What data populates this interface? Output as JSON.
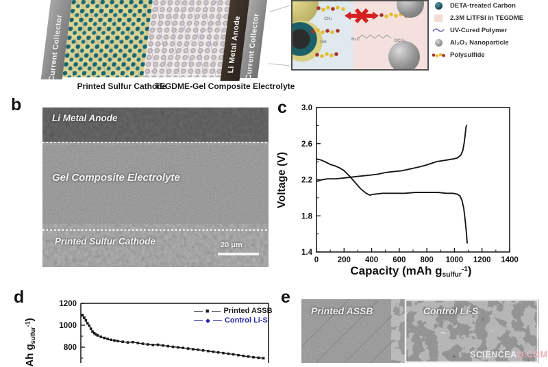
{
  "panel_a": {
    "schematic": {
      "current_collector_left": "Current Collector",
      "current_collector_right": "Current Collector",
      "li_metal_anode": "Li Metal Anode",
      "cathode_caption": "Printed Sulfur Cathode",
      "electrolyte_caption": "TEGDME-Gel Composite Electrolyte"
    },
    "inset": {
      "formula_left_top": "CH₃",
      "formula_left_bottom": "OH",
      "formula_right_left": "H₃C",
      "formula_right_right": "OCH₃"
    },
    "legend": [
      {
        "icon": "carbon-sphere-icon",
        "label": "DETA-treated Carbon"
      },
      {
        "icon": "tegdme-square-icon",
        "label": "2.3M LiTFSI in TEGDME"
      },
      {
        "icon": "polymer-curve-icon",
        "label": "UV-Cured Polymer"
      },
      {
        "icon": "alumina-sphere-icon",
        "label": "Al₂O₃ Nanoparticle"
      },
      {
        "icon": "polysulfide-chain-icon",
        "label": "Polysulfide"
      }
    ]
  },
  "panel_b": {
    "letter": "b",
    "layers": {
      "top": "Li Metal Anode",
      "middle": "Gel Composite Electrolyte",
      "bottom": "Printed Sulfur Cathode"
    },
    "scale_bar": "20 μm"
  },
  "panel_c": {
    "letter": "c",
    "ylabel": "Voltage (V)",
    "xlabel_pre": "Capacity (mAh g",
    "xlabel_sub": "sulfur",
    "xlabel_sup": "-1",
    "xlabel_post": ")"
  },
  "panel_d": {
    "letter": "d",
    "ylabel_pre": "Ah g",
    "ylabel_sub": "sulfur",
    "ylabel_sup": "-1",
    "ylabel_post": ")",
    "legend": [
      {
        "label": "Printed ASSB",
        "color": "#1a1a1a",
        "marker": "square"
      },
      {
        "label": "Control Li-S",
        "color": "#2525a8",
        "marker": "diamond"
      }
    ]
  },
  "panel_e": {
    "letter": "e",
    "label_left": "Printed ASSB",
    "label_right": "Control Li-S"
  },
  "watermark": {
    "part1": "SCIENCEA",
    "part2": "Q.COM"
  },
  "colors": {
    "carbon_teal": "#1b5e66",
    "sulfur_yellow": "#d6cf92",
    "polymer_purple": "#7b6fae",
    "alumina_gray": "#9a9a9a",
    "polysulfide_yellow": "#e3bd30",
    "polysulfide_red": "#a93226",
    "blocked_arrow_red": "#d42020",
    "control_blue": "#2525a8",
    "inset_left_bg": "#dfe9ee",
    "inset_right_bg": "#f4e1dd"
  },
  "chart_data": [
    {
      "panel": "c",
      "type": "line",
      "title": "",
      "xlabel": "Capacity (mAh g_sulfur^-1)",
      "ylabel": "Voltage (V)",
      "xlim": [
        0,
        1400
      ],
      "ylim": [
        1.4,
        3.0
      ],
      "xticks": [
        0,
        200,
        400,
        600,
        800,
        1000,
        1200,
        1400
      ],
      "yticks": [
        1.4,
        1.8,
        2.2,
        2.6,
        3.0
      ],
      "grid": false,
      "legend_position": "none",
      "series": [
        {
          "name": "discharge",
          "color": "#161616",
          "points": [
            [
              0,
              2.43
            ],
            [
              30,
              2.42
            ],
            [
              60,
              2.4
            ],
            [
              100,
              2.37
            ],
            [
              140,
              2.35
            ],
            [
              170,
              2.33
            ],
            [
              200,
              2.3
            ],
            [
              240,
              2.24
            ],
            [
              280,
              2.17
            ],
            [
              320,
              2.1
            ],
            [
              360,
              2.05
            ],
            [
              385,
              2.03
            ],
            [
              420,
              2.04
            ],
            [
              480,
              2.05
            ],
            [
              560,
              2.05
            ],
            [
              640,
              2.05
            ],
            [
              720,
              2.06
            ],
            [
              800,
              2.06
            ],
            [
              880,
              2.06
            ],
            [
              940,
              2.05
            ],
            [
              990,
              2.05
            ],
            [
              1020,
              2.04
            ],
            [
              1040,
              2.02
            ],
            [
              1055,
              1.97
            ],
            [
              1068,
              1.88
            ],
            [
              1078,
              1.75
            ],
            [
              1086,
              1.62
            ],
            [
              1092,
              1.5
            ]
          ]
        },
        {
          "name": "charge",
          "color": "#161616",
          "points": [
            [
              0,
              2.18
            ],
            [
              40,
              2.2
            ],
            [
              80,
              2.21
            ],
            [
              140,
              2.21
            ],
            [
              200,
              2.22
            ],
            [
              260,
              2.23
            ],
            [
              320,
              2.24
            ],
            [
              380,
              2.25
            ],
            [
              440,
              2.26
            ],
            [
              500,
              2.28
            ],
            [
              560,
              2.29
            ],
            [
              620,
              2.3
            ],
            [
              680,
              2.32
            ],
            [
              740,
              2.34
            ],
            [
              790,
              2.36
            ],
            [
              830,
              2.38
            ],
            [
              870,
              2.4
            ],
            [
              910,
              2.41
            ],
            [
              950,
              2.42
            ],
            [
              990,
              2.43
            ],
            [
              1020,
              2.44
            ],
            [
              1045,
              2.47
            ],
            [
              1060,
              2.52
            ],
            [
              1070,
              2.6
            ],
            [
              1078,
              2.7
            ],
            [
              1084,
              2.78
            ],
            [
              1087,
              2.8
            ]
          ]
        }
      ]
    },
    {
      "panel": "d",
      "type": "line",
      "ylabel": "Capacity (mAh g_sulfur^-1), partially visible",
      "ylim_visible": [
        680,
        1200
      ],
      "yticks": [
        800,
        1000,
        1200
      ],
      "xaxis_note": "x-axis cropped out of the screenshot",
      "series": [
        {
          "name": "Printed ASSB",
          "color": "#1a1a1a",
          "marker": "square",
          "points": [
            [
              1,
              1090
            ],
            [
              2,
              1068
            ],
            [
              3,
              1045
            ],
            [
              4,
              1018
            ],
            [
              5,
              996
            ],
            [
              6,
              968
            ],
            [
              7,
              942
            ],
            [
              8,
              927
            ],
            [
              9,
              916
            ],
            [
              10,
              907
            ],
            [
              12,
              894
            ],
            [
              14,
              884
            ],
            [
              16,
              875
            ],
            [
              18,
              867
            ],
            [
              20,
              861
            ],
            [
              22,
              856
            ],
            [
              25,
              849
            ],
            [
              28,
              843
            ],
            [
              31,
              846
            ],
            [
              34,
              838
            ],
            [
              37,
              831
            ],
            [
              40,
              825
            ],
            [
              43,
              820
            ],
            [
              46,
              822
            ],
            [
              49,
              815
            ],
            [
              52,
              809
            ],
            [
              55,
              803
            ],
            [
              58,
              798
            ],
            [
              61,
              793
            ],
            [
              64,
              787
            ],
            [
              67,
              781
            ],
            [
              70,
              776
            ],
            [
              73,
              770
            ],
            [
              76,
              764
            ],
            [
              79,
              758
            ],
            [
              82,
              752
            ],
            [
              85,
              746
            ],
            [
              88,
              740
            ],
            [
              91,
              734
            ],
            [
              94,
              727
            ],
            [
              97,
              720
            ],
            [
              100,
              714
            ],
            [
              103,
              708
            ],
            [
              106,
              703
            ],
            [
              109,
              699
            ]
          ]
        },
        {
          "name": "Control Li-S",
          "color": "#2525a8",
          "marker": "diamond",
          "points": [],
          "note": "curve lies below the cropped area of the screenshot"
        }
      ]
    }
  ]
}
